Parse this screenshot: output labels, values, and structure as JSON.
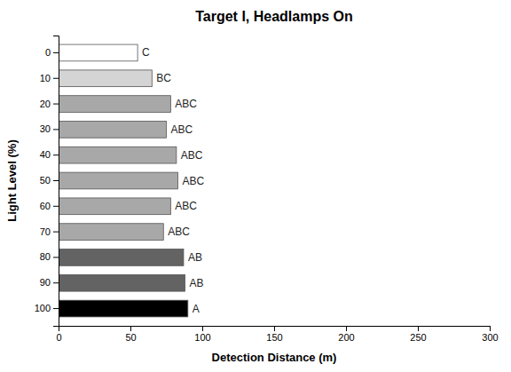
{
  "chart_data": {
    "type": "bar",
    "orientation": "horizontal",
    "title": "Target I, Headlamps On",
    "xlabel": "Detection Distance (m)",
    "ylabel": "Light Level (%)",
    "categories": [
      0,
      10,
      20,
      30,
      40,
      50,
      60,
      70,
      80,
      90,
      100
    ],
    "values": [
      55,
      65,
      78,
      75,
      82,
      83,
      78,
      73,
      87,
      88,
      90
    ],
    "annotations": [
      "C",
      "BC",
      "ABC",
      "ABC",
      "ABC",
      "ABC",
      "ABC",
      "ABC",
      "AB",
      "AB",
      "A"
    ],
    "colors": [
      "#ffffff",
      "#d4d4d4",
      "#a8a8a8",
      "#a8a8a8",
      "#a8a8a8",
      "#a8a8a8",
      "#a8a8a8",
      "#a8a8a8",
      "#636363",
      "#636363",
      "#000000"
    ],
    "xlim": [
      0,
      300
    ],
    "xticks": [
      0,
      50,
      100,
      150,
      200,
      250,
      300
    ],
    "grid": false
  }
}
